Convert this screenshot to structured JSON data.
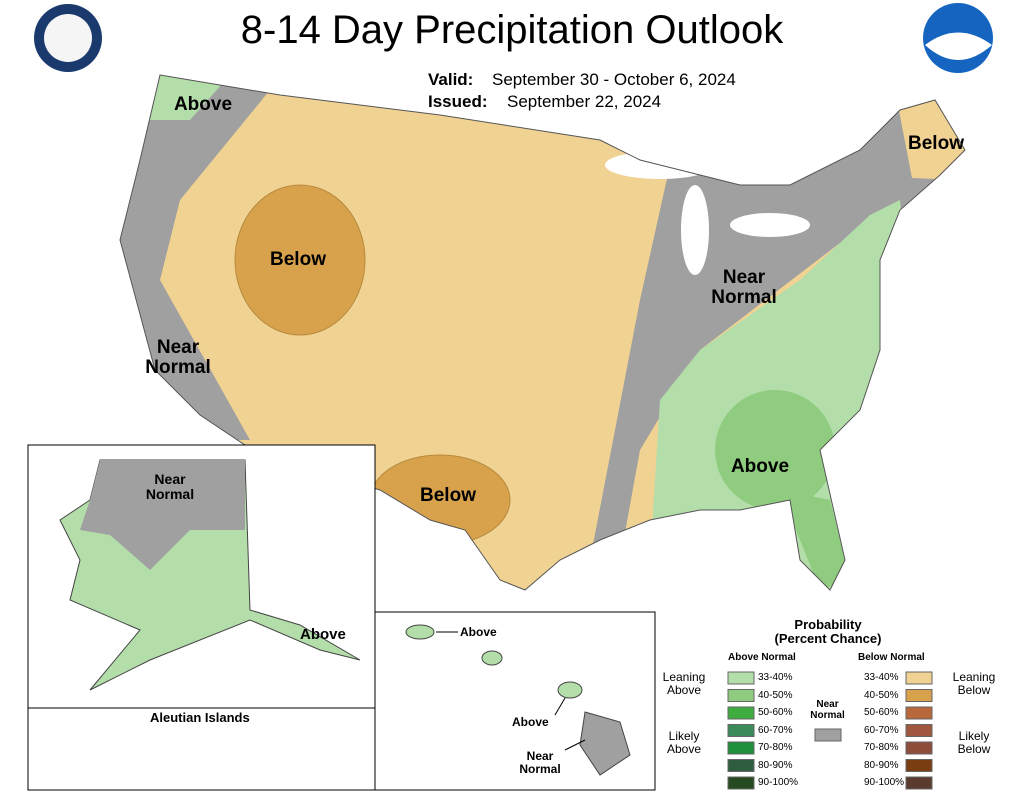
{
  "header": {
    "title": "8-14 Day Precipitation Outlook",
    "valid_label": "Valid:",
    "valid_dates": "September 30 - October 6, 2024",
    "issued_label": "Issued:",
    "issued_date": "September 22, 2024"
  },
  "conus_labels": [
    "Above",
    "Below",
    "Below",
    "Near Normal",
    "Near Normal",
    "Below",
    "Above"
  ],
  "alaska_labels": [
    "Near Normal",
    "Above"
  ],
  "aleutian_title": "Aleutian Islands",
  "hawaii_labels": [
    "Above",
    "Above",
    "Near Normal"
  ],
  "legend": {
    "title": "Probability (Percent Chance)",
    "above_header": "Above Normal",
    "below_header": "Below Normal",
    "near_normal": "Near Normal",
    "near_color": "#a0a0a0",
    "leaning_above": "Leaning Above",
    "likely_above": "Likely Above",
    "leaning_below": "Leaning Below",
    "likely_below": "Likely Below",
    "above": [
      {
        "range": "33-40%",
        "color": "#b3deaa"
      },
      {
        "range": "40-50%",
        "color": "#8fcc7f"
      },
      {
        "range": "50-60%",
        "color": "#3fac3f"
      },
      {
        "range": "60-70%",
        "color": "#3a8a5a"
      },
      {
        "range": "70-80%",
        "color": "#1e8f3a"
      },
      {
        "range": "80-90%",
        "color": "#2f5d3f"
      },
      {
        "range": "90-100%",
        "color": "#254a1f"
      }
    ],
    "below": [
      {
        "range": "33-40%",
        "color": "#f0d293"
      },
      {
        "range": "40-50%",
        "color": "#d8a24d"
      },
      {
        "range": "50-60%",
        "color": "#b8683a"
      },
      {
        "range": "60-70%",
        "color": "#a0573f"
      },
      {
        "range": "70-80%",
        "color": "#8d4d3a"
      },
      {
        "range": "80-90%",
        "color": "#7a3e12"
      },
      {
        "range": "90-100%",
        "color": "#5a3b2d"
      }
    ]
  }
}
